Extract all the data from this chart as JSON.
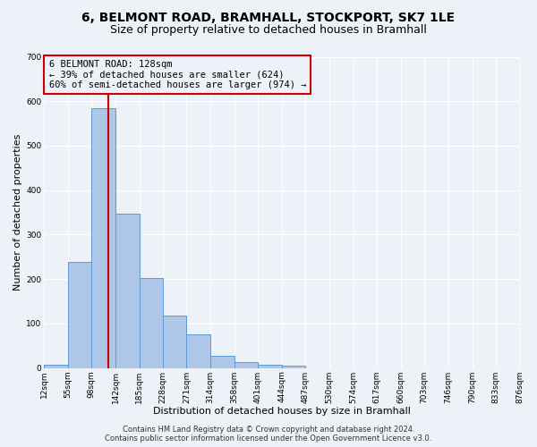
{
  "title": "6, BELMONT ROAD, BRAMHALL, STOCKPORT, SK7 1LE",
  "subtitle": "Size of property relative to detached houses in Bramhall",
  "xlabel": "Distribution of detached houses by size in Bramhall",
  "ylabel": "Number of detached properties",
  "bar_values": [
    7,
    238,
    585,
    348,
    203,
    118,
    75,
    27,
    14,
    7,
    5,
    0,
    0,
    0,
    0,
    0,
    0,
    0,
    0,
    0
  ],
  "bin_edges": [
    12,
    55,
    98,
    142,
    185,
    228,
    271,
    314,
    358,
    401,
    444,
    487,
    530,
    574,
    617,
    660,
    703,
    746,
    790,
    833,
    876
  ],
  "tick_labels": [
    "12sqm",
    "55sqm",
    "98sqm",
    "142sqm",
    "185sqm",
    "228sqm",
    "271sqm",
    "314sqm",
    "358sqm",
    "401sqm",
    "444sqm",
    "487sqm",
    "530sqm",
    "574sqm",
    "617sqm",
    "660sqm",
    "703sqm",
    "746sqm",
    "790sqm",
    "833sqm",
    "876sqm"
  ],
  "bar_color": "#aec6e8",
  "bar_edge_color": "#5b9bd5",
  "vline_x": 128,
  "vline_color": "#cc0000",
  "ylim": [
    0,
    700
  ],
  "yticks": [
    0,
    100,
    200,
    300,
    400,
    500,
    600,
    700
  ],
  "annotation_line1": "6 BELMONT ROAD: 128sqm",
  "annotation_line2": "← 39% of detached houses are smaller (624)",
  "annotation_line3": "60% of semi-detached houses are larger (974) →",
  "annotation_box_color": "#cc0000",
  "footer_line1": "Contains HM Land Registry data © Crown copyright and database right 2024.",
  "footer_line2": "Contains public sector information licensed under the Open Government Licence v3.0.",
  "background_color": "#edf2f9",
  "grid_color": "#ffffff",
  "title_fontsize": 10,
  "subtitle_fontsize": 9,
  "axis_label_fontsize": 8,
  "tick_fontsize": 6.5,
  "annotation_fontsize": 7.5,
  "footer_fontsize": 6
}
